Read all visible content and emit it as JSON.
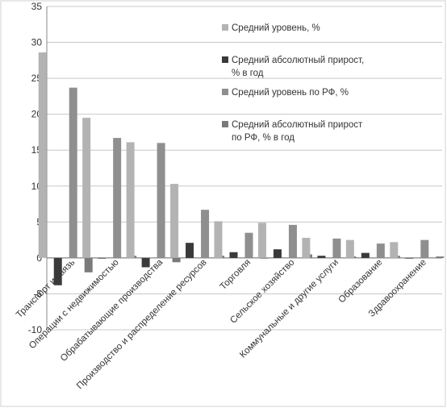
{
  "chart_data": {
    "type": "bar",
    "categories": [
      "Транспорт и связь",
      "Операции с недвижимостью",
      "Обрабатывающие производства",
      "Производство и распределение ресурсов",
      "Торговля",
      "Сельское хозяйство",
      "Коммунальные и другие услуги",
      "Образование",
      "Здравоохранение"
    ],
    "series": [
      {
        "name": "Средний уровень, %",
        "color": "#b3b3b3",
        "values": [
          28.6,
          19.5,
          16.1,
          10.3,
          5.1,
          4.9,
          2.8,
          2.5,
          2.2
        ]
      },
      {
        "name": "Средний абсолютный прирост, % в год",
        "color": "#3a3a3a",
        "values": [
          -3.8,
          0.0,
          -1.3,
          2.1,
          0.8,
          1.2,
          0.3,
          0.7,
          0.0
        ]
      },
      {
        "name": "Средний уровень по РФ, %",
        "color": "#8f8f8f",
        "values": [
          23.7,
          16.7,
          16.0,
          6.7,
          3.5,
          4.6,
          2.7,
          2.0,
          2.5
        ]
      },
      {
        "name": "Средний абсолютный прирост по РФ, % в год",
        "color": "#7a7a7a",
        "values": [
          -2.0,
          0.3,
          -0.6,
          0.3,
          -0.1,
          0.5,
          0.2,
          0.3,
          0.2
        ]
      }
    ],
    "legend": {
      "placement": "top-right",
      "entries": [
        [
          "Средний уровень, %"
        ],
        [
          "Средний абсолютный прирост,",
          "% в год"
        ],
        [
          "Средний уровень по РФ, %"
        ],
        [
          "Средний абсолютный прирост",
          "по РФ, % в год"
        ]
      ]
    },
    "ylim": [
      -10,
      35
    ],
    "yticks": [
      "35",
      "30",
      "25",
      "20",
      "15",
      "10",
      "5",
      "0",
      "-5",
      "-10"
    ],
    "grid": true
  }
}
